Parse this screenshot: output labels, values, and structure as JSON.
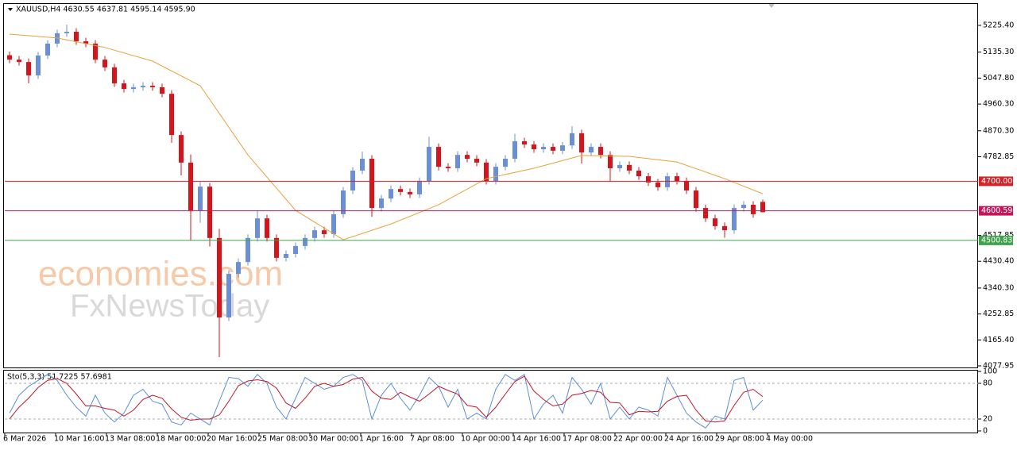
{
  "watermark": [
    "economies.com",
    "FxNewsToday"
  ],
  "chart_data": [
    {
      "type": "candlestick",
      "title": "XAUUSD,H4  4630.55 4637.81 4595.14 4595.90",
      "up_color": "#6b8fd6",
      "down_color": "#d4161c",
      "open": [
        5125,
        5110,
        5102,
        5057,
        5124,
        5164,
        5199,
        5204,
        5172,
        5164,
        5110,
        5084,
        5030,
        5011,
        5017,
        5022,
        5017,
        4995,
        4856,
        4763,
        4602,
        4682,
        4509,
        4241,
        4388,
        4428,
        4509,
        4575,
        4509,
        4442,
        4455,
        4482,
        4509,
        4535,
        4522,
        4589,
        4669,
        4736,
        4776,
        4610,
        4642,
        4674,
        4664,
        4656,
        4701,
        4816,
        4749,
        4744,
        4789,
        4776,
        4763,
        4701,
        4749,
        4776,
        4835,
        4824,
        4808,
        4816,
        4803,
        4821,
        4862,
        4797,
        4816,
        4789,
        4744,
        4755,
        4736,
        4717,
        4696,
        4680,
        4717,
        4701,
        4669,
        4610,
        4575,
        4549,
        4535,
        4610,
        4621,
        4630.55
      ],
      "high": [
        5137,
        5122,
        5114,
        5136,
        5176,
        5211,
        5228,
        5216,
        5184,
        5176,
        5122,
        5096,
        5042,
        5029,
        5034,
        5034,
        5029,
        5007,
        4868,
        4790,
        4700,
        4694,
        4540,
        4400,
        4440,
        4521,
        4600,
        4587,
        4521,
        4467,
        4494,
        4521,
        4547,
        4547,
        4601,
        4681,
        4748,
        4800,
        4788,
        4654,
        4686,
        4686,
        4676,
        4713,
        4850,
        4828,
        4761,
        4801,
        4801,
        4788,
        4775,
        4761,
        4788,
        4860,
        4847,
        4836,
        4828,
        4828,
        4833,
        4885,
        4874,
        4828,
        4828,
        4801,
        4767,
        4767,
        4748,
        4729,
        4708,
        4729,
        4729,
        4713,
        4681,
        4622,
        4587,
        4561,
        4622,
        4633,
        4633,
        4637.81
      ],
      "low": [
        5098,
        5090,
        5030,
        5045,
        5112,
        5152,
        5187,
        5160,
        5152,
        5098,
        5072,
        5018,
        4999,
        4999,
        5005,
        5005,
        4983,
        4830,
        4720,
        4500,
        4560,
        4480,
        4107,
        4229,
        4376,
        4416,
        4497,
        4497,
        4430,
        4430,
        4443,
        4470,
        4497,
        4510,
        4510,
        4577,
        4657,
        4724,
        4580,
        4598,
        4630,
        4652,
        4644,
        4644,
        4689,
        4737,
        4732,
        4732,
        4764,
        4751,
        4689,
        4689,
        4737,
        4764,
        4812,
        4796,
        4796,
        4791,
        4791,
        4809,
        4760,
        4785,
        4777,
        4700,
        4732,
        4724,
        4705,
        4684,
        4668,
        4668,
        4689,
        4657,
        4598,
        4563,
        4537,
        4510,
        4523,
        4598,
        4577,
        4595.14
      ],
      "close": [
        5110,
        5102,
        5057,
        5124,
        5164,
        5199,
        5204,
        5172,
        5164,
        5110,
        5084,
        5030,
        5011,
        5017,
        5022,
        5017,
        4995,
        4856,
        4763,
        4602,
        4682,
        4509,
        4241,
        4388,
        4428,
        4509,
        4575,
        4509,
        4442,
        4455,
        4482,
        4509,
        4535,
        4522,
        4589,
        4669,
        4736,
        4776,
        4610,
        4642,
        4674,
        4664,
        4656,
        4701,
        4816,
        4749,
        4744,
        4789,
        4776,
        4763,
        4701,
        4749,
        4776,
        4835,
        4824,
        4808,
        4816,
        4803,
        4821,
        4862,
        4797,
        4816,
        4789,
        4744,
        4755,
        4736,
        4717,
        4696,
        4680,
        4717,
        4701,
        4669,
        4610,
        4575,
        4549,
        4535,
        4610,
        4621,
        4589,
        4595.9
      ],
      "ma": {
        "color": "#e8a23a",
        "x": [
          1.5,
          16.5,
          31.5,
          46.5,
          61.5,
          76.5,
          91.5,
          106.5,
          121.5,
          136.5,
          151.5,
          166.5,
          181.5,
          196.5,
          211.5,
          226.5,
          238.5
        ],
        "values": [
          5196,
          5183,
          5151,
          5105,
          5022,
          4789,
          4602,
          4503,
          4556,
          4621,
          4709,
          4744,
          4787,
          4784,
          4765,
          4709,
          4658
        ]
      },
      "levels": {
        "values": [
          4700,
          4600.59,
          4500.83
        ],
        "value_labels": [
          "4700.00",
          "4600.59",
          "4500.83"
        ],
        "colors": [
          "#d2232a",
          "#c2185b",
          "#3fa34d"
        ]
      },
      "ylim": [
        4072.6,
        5300.3
      ],
      "yticks": [
        {
          "value": 5225.4,
          "label": "5225.40"
        },
        {
          "value": 5135.3,
          "label": "5135.30"
        },
        {
          "value": 5047.8,
          "label": "5047.80"
        },
        {
          "value": 4960.3,
          "label": "4960.30"
        },
        {
          "value": 4870.3,
          "label": "4870.30"
        },
        {
          "value": 4782.85,
          "label": "4782.85"
        },
        {
          "value": 4517.85,
          "label": "4517.85"
        },
        {
          "value": 4430.4,
          "label": "4430.40"
        },
        {
          "value": 4340.3,
          "label": "4340.30"
        },
        {
          "value": 4252.85,
          "label": "4252.85"
        },
        {
          "value": 4165.4,
          "label": "4165.40"
        },
        {
          "value": 4077.95,
          "label": "4077.95"
        }
      ],
      "xlim": [
        0,
        306.25
      ],
      "xticks": [
        {
          "value": 0,
          "label": "6 Mar 2026"
        },
        {
          "value": 16,
          "label": "10 Mar 16:00"
        },
        {
          "value": 32,
          "label": "13 Mar 08:00"
        },
        {
          "value": 48,
          "label": "18 Mar 00:00"
        },
        {
          "value": 64,
          "label": "20 Mar 16:00"
        },
        {
          "value": 80,
          "label": "25 Mar 08:00"
        },
        {
          "value": 96,
          "label": "30 Mar 00:00"
        },
        {
          "value": 112,
          "label": "1 Apr 16:00"
        },
        {
          "value": 128,
          "label": "7 Apr 08:00"
        },
        {
          "value": 144,
          "label": "10 Apr 00:00"
        },
        {
          "value": 160,
          "label": "14 Apr 16:00"
        },
        {
          "value": 176,
          "label": "17 Apr 08:00"
        },
        {
          "value": 192,
          "label": "22 Apr 00:00"
        },
        {
          "value": 208,
          "label": "24 Apr 16:00"
        },
        {
          "value": 224,
          "label": "29 Apr 08:00"
        },
        {
          "value": 240,
          "label": "4 May 00:00"
        }
      ]
    },
    {
      "type": "line",
      "title": "Sto(5,3,3) 51.7225 57.6981",
      "series": [
        {
          "color": "#5b8fd8",
          "values": [
            30,
            60,
            75,
            85,
            95,
            85,
            60,
            40,
            25,
            60,
            30,
            15,
            30,
            60,
            70,
            50,
            45,
            15,
            10,
            30,
            20,
            10,
            50,
            90,
            88,
            75,
            95,
            80,
            40,
            20,
            55,
            90,
            80,
            70,
            75,
            90,
            95,
            85,
            20,
            60,
            80,
            55,
            35,
            60,
            90,
            75,
            40,
            70,
            20,
            30,
            20,
            70,
            95,
            85,
            95,
            20,
            45,
            60,
            30,
            90,
            70,
            45,
            80,
            20,
            40,
            20,
            40,
            35,
            25,
            90,
            60,
            30,
            15,
            5,
            25,
            20,
            85,
            90,
            35,
            51.7225
          ]
        },
        {
          "color": "#c0182a",
          "values": [
            20,
            40,
            55,
            73,
            85,
            88,
            80,
            62,
            42,
            42,
            38,
            35,
            25,
            35,
            53,
            60,
            55,
            37,
            23,
            18,
            20,
            20,
            27,
            50,
            76,
            84,
            86,
            83,
            72,
            47,
            38,
            55,
            75,
            80,
            75,
            78,
            87,
            90,
            67,
            55,
            53,
            65,
            57,
            50,
            62,
            75,
            68,
            62,
            43,
            40,
            23,
            40,
            62,
            83,
            92,
            67,
            53,
            42,
            45,
            60,
            63,
            68,
            65,
            48,
            47,
            27,
            33,
            32,
            33,
            50,
            58,
            60,
            35,
            17,
            15,
            17,
            43,
            65,
            70,
            57.6981
          ]
        }
      ],
      "ylim": [
        -2.7,
        102.7
      ],
      "yticks": [
        100,
        80,
        20,
        0
      ]
    }
  ]
}
